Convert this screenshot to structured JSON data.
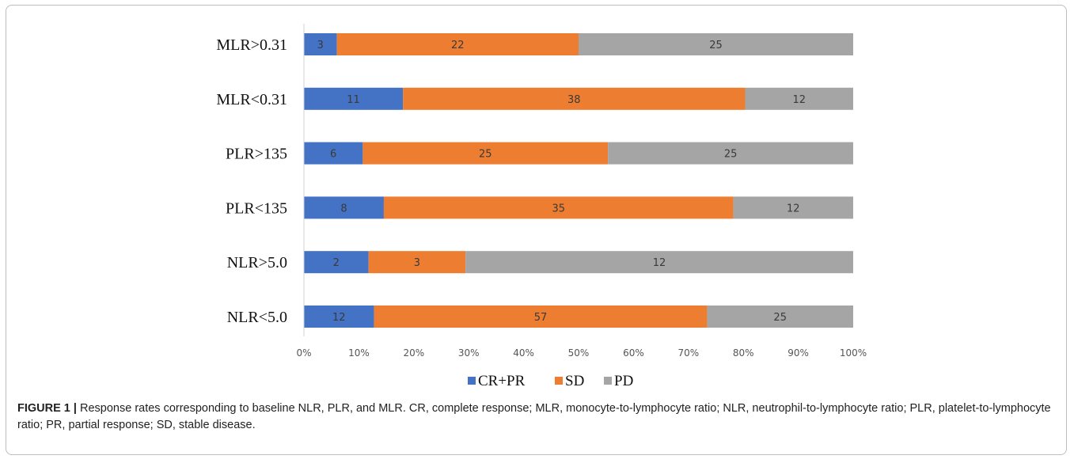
{
  "chart_data": {
    "type": "bar",
    "orientation": "horizontal",
    "stacked": true,
    "normalized_percent": true,
    "categories": [
      "MLR>0.31",
      "MLR<0.31",
      "PLR>135",
      "PLR<135",
      "NLR>5.0",
      "NLR<5.0"
    ],
    "series": [
      {
        "name": "CR+PR",
        "color": "#4472c4",
        "values": [
          3,
          11,
          6,
          8,
          2,
          12
        ]
      },
      {
        "name": "SD",
        "color": "#ed7d31",
        "values": [
          22,
          38,
          25,
          35,
          3,
          57
        ]
      },
      {
        "name": "PD",
        "color": "#a5a5a5",
        "values": [
          25,
          12,
          25,
          12,
          12,
          25
        ]
      }
    ],
    "x_ticks": [
      "0%",
      "10%",
      "20%",
      "30%",
      "40%",
      "50%",
      "60%",
      "70%",
      "80%",
      "90%",
      "100%"
    ],
    "xlim": [
      0,
      100
    ],
    "grid": false,
    "legend_position": "bottom"
  },
  "caption": {
    "label": "FIGURE 1 |",
    "text": " Response rates corresponding to baseline NLR, PLR, and MLR. CR, complete response; MLR, monocyte-to-lymphocyte ratio; NLR, neutrophil-to-lymphocyte ratio; PLR, platelet-to-lymphocyte ratio; PR, partial response; SD, stable disease."
  }
}
